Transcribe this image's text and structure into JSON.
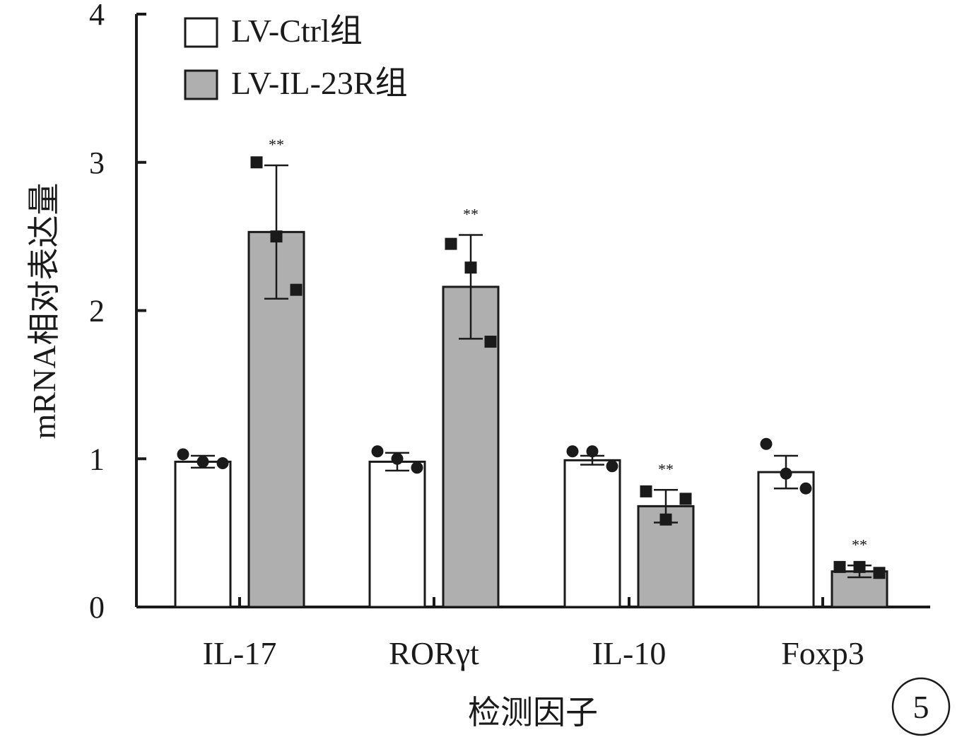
{
  "chart_data": {
    "type": "bar",
    "ylabel": "mRNA相对表达量",
    "xlabel": "检测因子",
    "ylim": [
      0,
      4
    ],
    "yticks": [
      "0",
      "1",
      "2",
      "3",
      "4"
    ],
    "grid": false,
    "legend_position": "top-left",
    "categories": [
      "IL-17",
      "RORγt",
      "IL-10",
      "Foxp3"
    ],
    "series": [
      {
        "name": "LV-Ctrl组",
        "fill": "#ffffff",
        "marker": "circle",
        "values": [
          0.98,
          0.98,
          0.99,
          0.91
        ],
        "errors": [
          0.04,
          0.06,
          0.03,
          0.11
        ],
        "points": [
          [
            1.03,
            0.98,
            0.97
          ],
          [
            1.05,
            1.0,
            0.94
          ],
          [
            1.05,
            1.05,
            0.95
          ],
          [
            1.1,
            0.9,
            0.8
          ]
        ],
        "significance": [
          "",
          "",
          "",
          ""
        ]
      },
      {
        "name": "LV-IL-23R组",
        "fill": "#b0afaf",
        "marker": "square",
        "values": [
          2.53,
          2.16,
          0.68,
          0.24
        ],
        "errors": [
          0.45,
          0.35,
          0.11,
          0.04
        ],
        "points": [
          [
            3.0,
            2.5,
            2.14
          ],
          [
            2.45,
            2.29,
            1.79
          ],
          [
            0.78,
            0.59,
            0.73
          ],
          [
            0.27,
            0.27,
            0.23
          ]
        ],
        "significance": [
          "**",
          "**",
          "**",
          "**"
        ]
      }
    ],
    "panel_label": "5"
  }
}
